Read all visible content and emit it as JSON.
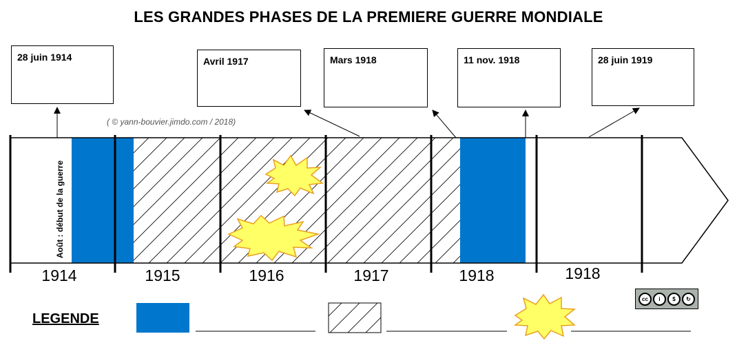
{
  "title": "LES GRANDES PHASES DE LA PREMIERE GUERRE MONDIALE",
  "credit": "( © yann-bouvier.jimdo.com / 2018)",
  "date_boxes": [
    "28 juin 1914",
    "Avril 1917",
    "Mars 1918",
    "11 nov. 1918",
    "28 juin 1919"
  ],
  "timeline": {
    "years": [
      "1914",
      "1915",
      "1916",
      "1917",
      "1918",
      "1918"
    ],
    "vertical_note": "Août : début de la guerre"
  },
  "legend": {
    "label": "LEGENDE"
  },
  "license": {
    "icons": [
      "cc",
      "by",
      "nc",
      "sa"
    ]
  },
  "colors": {
    "blue": "#0077cc",
    "explosion_fill": "#ffff66",
    "explosion_stroke": "#e8a020"
  }
}
